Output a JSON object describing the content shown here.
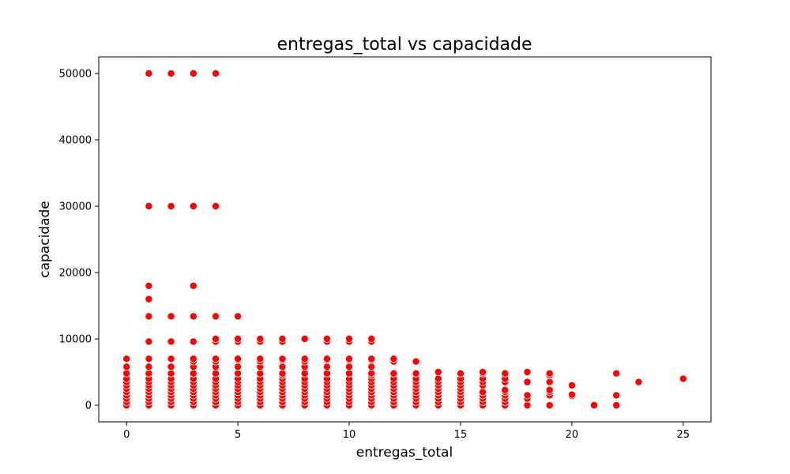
{
  "chart_data": {
    "type": "scatter",
    "title": "entregas_total vs capacidade",
    "xlabel": "entregas_total",
    "ylabel": "capacidade",
    "xlim": [
      -1.25,
      26.25
    ],
    "ylim": [
      -2500,
      52500
    ],
    "xticks": [
      0,
      5,
      10,
      15,
      20,
      25
    ],
    "yticks": [
      0,
      10000,
      20000,
      30000,
      40000,
      50000
    ],
    "grid": false,
    "legend": "none",
    "marker_color": "#ff0000",
    "marker_edge_color": "#ffffff",
    "series": [
      {
        "points": [
          [
            0,
            0
          ],
          [
            0,
            500
          ],
          [
            0,
            1000
          ],
          [
            0,
            1500
          ],
          [
            0,
            2000
          ],
          [
            0,
            2500
          ],
          [
            0,
            3000
          ],
          [
            0,
            3500
          ],
          [
            0,
            4000
          ],
          [
            0,
            4800
          ],
          [
            0,
            5800
          ],
          [
            0,
            7000
          ],
          [
            1,
            0
          ],
          [
            1,
            500
          ],
          [
            1,
            1000
          ],
          [
            1,
            1500
          ],
          [
            1,
            2000
          ],
          [
            1,
            2500
          ],
          [
            1,
            3000
          ],
          [
            1,
            3500
          ],
          [
            1,
            4000
          ],
          [
            1,
            4800
          ],
          [
            1,
            5800
          ],
          [
            1,
            7000
          ],
          [
            1,
            9600
          ],
          [
            1,
            13400
          ],
          [
            1,
            16000
          ],
          [
            1,
            18000
          ],
          [
            1,
            30000
          ],
          [
            1,
            50000
          ],
          [
            2,
            0
          ],
          [
            2,
            500
          ],
          [
            2,
            1000
          ],
          [
            2,
            1500
          ],
          [
            2,
            2000
          ],
          [
            2,
            2500
          ],
          [
            2,
            3000
          ],
          [
            2,
            3500
          ],
          [
            2,
            4000
          ],
          [
            2,
            4800
          ],
          [
            2,
            5800
          ],
          [
            2,
            7000
          ],
          [
            2,
            9600
          ],
          [
            2,
            13400
          ],
          [
            2,
            30000
          ],
          [
            2,
            50000
          ],
          [
            3,
            0
          ],
          [
            3,
            500
          ],
          [
            3,
            1000
          ],
          [
            3,
            1500
          ],
          [
            3,
            2000
          ],
          [
            3,
            2500
          ],
          [
            3,
            3000
          ],
          [
            3,
            3500
          ],
          [
            3,
            4000
          ],
          [
            3,
            4800
          ],
          [
            3,
            5800
          ],
          [
            3,
            6600
          ],
          [
            3,
            7000
          ],
          [
            3,
            9600
          ],
          [
            3,
            13400
          ],
          [
            3,
            18000
          ],
          [
            3,
            30000
          ],
          [
            3,
            50000
          ],
          [
            4,
            0
          ],
          [
            4,
            500
          ],
          [
            4,
            1000
          ],
          [
            4,
            1500
          ],
          [
            4,
            2000
          ],
          [
            4,
            2500
          ],
          [
            4,
            3000
          ],
          [
            4,
            3500
          ],
          [
            4,
            4000
          ],
          [
            4,
            4800
          ],
          [
            4,
            5800
          ],
          [
            4,
            6600
          ],
          [
            4,
            7000
          ],
          [
            4,
            9600
          ],
          [
            4,
            10000
          ],
          [
            4,
            13400
          ],
          [
            4,
            30000
          ],
          [
            4,
            50000
          ],
          [
            5,
            0
          ],
          [
            5,
            500
          ],
          [
            5,
            1000
          ],
          [
            5,
            1500
          ],
          [
            5,
            2000
          ],
          [
            5,
            2500
          ],
          [
            5,
            3000
          ],
          [
            5,
            3500
          ],
          [
            5,
            4000
          ],
          [
            5,
            4800
          ],
          [
            5,
            5800
          ],
          [
            5,
            6800
          ],
          [
            5,
            7000
          ],
          [
            5,
            9600
          ],
          [
            5,
            10000
          ],
          [
            5,
            13400
          ],
          [
            6,
            0
          ],
          [
            6,
            500
          ],
          [
            6,
            1000
          ],
          [
            6,
            1500
          ],
          [
            6,
            2000
          ],
          [
            6,
            2500
          ],
          [
            6,
            3000
          ],
          [
            6,
            3500
          ],
          [
            6,
            4000
          ],
          [
            6,
            4800
          ],
          [
            6,
            5800
          ],
          [
            6,
            6600
          ],
          [
            6,
            7000
          ],
          [
            6,
            9600
          ],
          [
            6,
            10000
          ],
          [
            7,
            0
          ],
          [
            7,
            500
          ],
          [
            7,
            1000
          ],
          [
            7,
            1500
          ],
          [
            7,
            2000
          ],
          [
            7,
            2500
          ],
          [
            7,
            3000
          ],
          [
            7,
            3500
          ],
          [
            7,
            4000
          ],
          [
            7,
            4500
          ],
          [
            7,
            4800
          ],
          [
            7,
            5800
          ],
          [
            7,
            6800
          ],
          [
            7,
            7000
          ],
          [
            7,
            9600
          ],
          [
            7,
            10000
          ],
          [
            8,
            0
          ],
          [
            8,
            500
          ],
          [
            8,
            1000
          ],
          [
            8,
            1500
          ],
          [
            8,
            2000
          ],
          [
            8,
            2500
          ],
          [
            8,
            3000
          ],
          [
            8,
            3500
          ],
          [
            8,
            4000
          ],
          [
            8,
            4800
          ],
          [
            8,
            5800
          ],
          [
            8,
            6600
          ],
          [
            8,
            7000
          ],
          [
            8,
            10000
          ],
          [
            9,
            0
          ],
          [
            9,
            500
          ],
          [
            9,
            1000
          ],
          [
            9,
            1500
          ],
          [
            9,
            2000
          ],
          [
            9,
            2500
          ],
          [
            9,
            3000
          ],
          [
            9,
            3500
          ],
          [
            9,
            4000
          ],
          [
            9,
            4800
          ],
          [
            9,
            5800
          ],
          [
            9,
            6800
          ],
          [
            9,
            7000
          ],
          [
            9,
            9600
          ],
          [
            9,
            10000
          ],
          [
            10,
            0
          ],
          [
            10,
            500
          ],
          [
            10,
            1000
          ],
          [
            10,
            1500
          ],
          [
            10,
            2000
          ],
          [
            10,
            2500
          ],
          [
            10,
            3000
          ],
          [
            10,
            3500
          ],
          [
            10,
            4000
          ],
          [
            10,
            4800
          ],
          [
            10,
            5800
          ],
          [
            10,
            6800
          ],
          [
            10,
            7000
          ],
          [
            10,
            9600
          ],
          [
            10,
            10000
          ],
          [
            11,
            0
          ],
          [
            11,
            500
          ],
          [
            11,
            1000
          ],
          [
            11,
            1500
          ],
          [
            11,
            2000
          ],
          [
            11,
            2500
          ],
          [
            11,
            3000
          ],
          [
            11,
            3500
          ],
          [
            11,
            4000
          ],
          [
            11,
            4500
          ],
          [
            11,
            4800
          ],
          [
            11,
            5800
          ],
          [
            11,
            6800
          ],
          [
            11,
            7000
          ],
          [
            11,
            9600
          ],
          [
            11,
            10000
          ],
          [
            12,
            0
          ],
          [
            12,
            500
          ],
          [
            12,
            1000
          ],
          [
            12,
            1500
          ],
          [
            12,
            2000
          ],
          [
            12,
            2500
          ],
          [
            12,
            3000
          ],
          [
            12,
            3500
          ],
          [
            12,
            4000
          ],
          [
            12,
            4800
          ],
          [
            12,
            6600
          ],
          [
            12,
            7000
          ],
          [
            13,
            0
          ],
          [
            13,
            500
          ],
          [
            13,
            1000
          ],
          [
            13,
            1500
          ],
          [
            13,
            2000
          ],
          [
            13,
            2500
          ],
          [
            13,
            3000
          ],
          [
            13,
            3500
          ],
          [
            13,
            4000
          ],
          [
            13,
            4800
          ],
          [
            13,
            6600
          ],
          [
            14,
            0
          ],
          [
            14,
            500
          ],
          [
            14,
            1000
          ],
          [
            14,
            1500
          ],
          [
            14,
            2000
          ],
          [
            14,
            2500
          ],
          [
            14,
            3000
          ],
          [
            14,
            3500
          ],
          [
            14,
            4000
          ],
          [
            14,
            5000
          ],
          [
            15,
            0
          ],
          [
            15,
            500
          ],
          [
            15,
            1000
          ],
          [
            15,
            1500
          ],
          [
            15,
            2000
          ],
          [
            15,
            2500
          ],
          [
            15,
            3000
          ],
          [
            15,
            3500
          ],
          [
            15,
            4000
          ],
          [
            15,
            4800
          ],
          [
            16,
            0
          ],
          [
            16,
            500
          ],
          [
            16,
            1000
          ],
          [
            16,
            1500
          ],
          [
            16,
            2000
          ],
          [
            16,
            3000
          ],
          [
            16,
            3500
          ],
          [
            16,
            4000
          ],
          [
            16,
            4800
          ],
          [
            16,
            5000
          ],
          [
            17,
            0
          ],
          [
            17,
            500
          ],
          [
            17,
            1000
          ],
          [
            17,
            1500
          ],
          [
            17,
            2000
          ],
          [
            17,
            2300
          ],
          [
            17,
            3500
          ],
          [
            17,
            4000
          ],
          [
            17,
            4800
          ],
          [
            18,
            0
          ],
          [
            18,
            1000
          ],
          [
            18,
            1500
          ],
          [
            18,
            3500
          ],
          [
            18,
            5000
          ],
          [
            19,
            0
          ],
          [
            19,
            1500
          ],
          [
            19,
            2000
          ],
          [
            19,
            2300
          ],
          [
            19,
            3500
          ],
          [
            19,
            4500
          ],
          [
            19,
            4800
          ],
          [
            20,
            1400
          ],
          [
            20,
            1600
          ],
          [
            20,
            3000
          ],
          [
            21,
            0
          ],
          [
            22,
            0
          ],
          [
            22,
            1500
          ],
          [
            22,
            4800
          ],
          [
            23,
            3500
          ],
          [
            25,
            4000
          ]
        ]
      }
    ]
  }
}
